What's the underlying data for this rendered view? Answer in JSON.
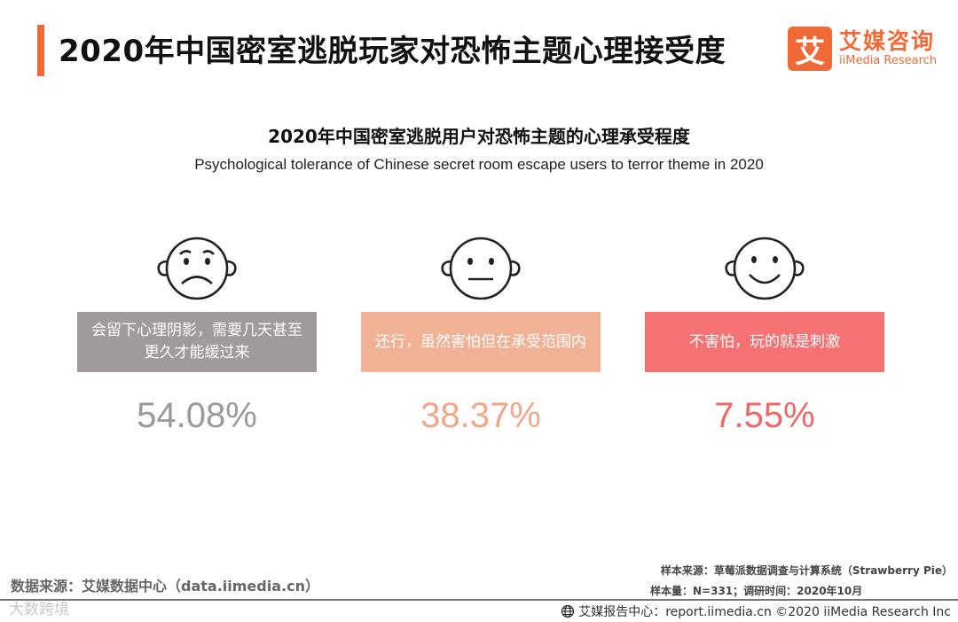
{
  "header": {
    "title": "2020年中国密室逃脱玩家对恐怖主题心理接受度",
    "logo_mark": "艾",
    "logo_cn": "艾媒咨询",
    "logo_en": "iiMedia Research"
  },
  "chart_data": {
    "type": "table",
    "title": "2020年中国密室逃脱用户对恐怖主题的心理承受程度",
    "subtitle": "Psychological tolerance of Chinese secret room escape users to terror theme in 2020",
    "categories": [
      "会留下心理阴影，需要几天甚至更久才能缓过来",
      "还行，虽然害怕但在承受范围内",
      "不害怕，玩的就是刺激"
    ],
    "values": [
      54.08,
      38.37,
      7.55
    ],
    "value_labels": [
      "54.08%",
      "38.37%",
      "7.55%"
    ],
    "unit": "%",
    "icons": [
      "sad-face-icon",
      "neutral-face-icon",
      "happy-face-icon"
    ],
    "colors": [
      "#a0999d",
      "#f1b195",
      "#f47272"
    ],
    "text_colors": [
      "#9a9a9a",
      "#f0a78a",
      "#f06767"
    ]
  },
  "footer": {
    "data_source": "数据来源：艾媒数据中心（data.iimedia.cn）",
    "sample_source": "样本来源：草莓派数据调查与计算系统（Strawberry Pie）",
    "sample_size": "样本量：N=331；调研时间：2020年10月",
    "report_center": "艾媒报告中心：report.iimedia.cn ©2020 iiMedia Research Inc",
    "watermark": "大数跨境"
  }
}
